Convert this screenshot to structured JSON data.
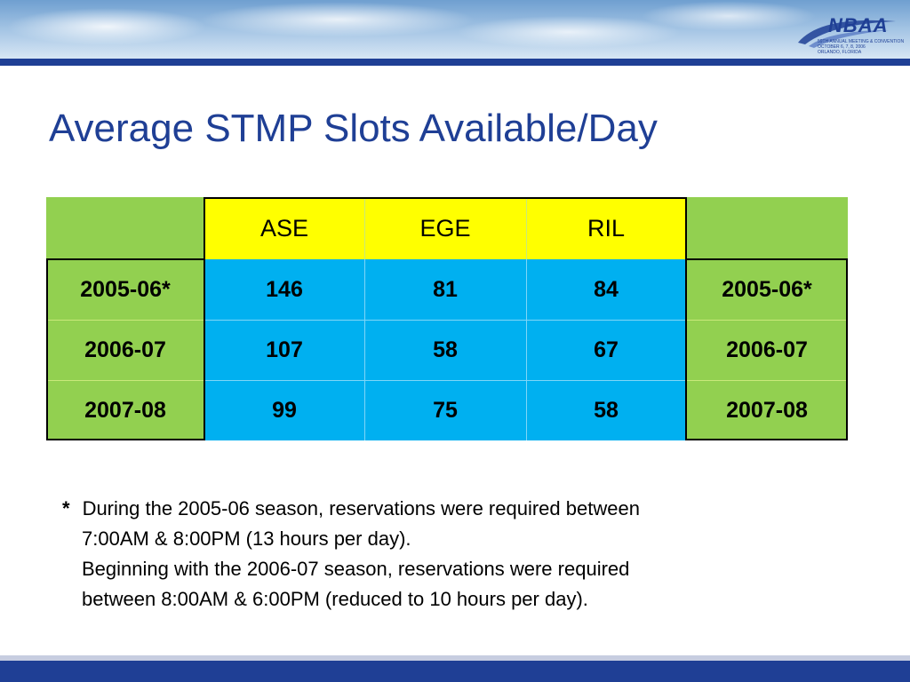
{
  "header": {
    "logo_text": "NBAA",
    "logo_subline_1": "59TH ANNUAL MEETING & CONVENTION",
    "logo_subline_2": "OCTOBER 6, 7, 8, 2006",
    "logo_subline_3": "ORLANDO, FLORIDA"
  },
  "slide": {
    "title": "Average STMP Slots Available/Day"
  },
  "table": {
    "columns": [
      "ASE",
      "EGE",
      "RIL"
    ],
    "rows": [
      {
        "season": "2005-06*",
        "values": [
          "146",
          "81",
          "84"
        ],
        "season_right": "2005-06*"
      },
      {
        "season": "2006-07",
        "values": [
          "107",
          "58",
          "67"
        ],
        "season_right": "2006-07"
      },
      {
        "season": "2007-08",
        "values": [
          "99",
          "75",
          "58"
        ],
        "season_right": "2007-08"
      }
    ]
  },
  "footnote": {
    "marker": "*",
    "line1": "During the 2005-06 season, reservations were required between",
    "line2": "7:00AM & 8:00PM (13 hours per day).",
    "line3": "Beginning with the 2006-07 season, reservations were required",
    "line4": "between 8:00AM & 6:00PM (reduced to 10 hours per day)."
  },
  "colors": {
    "title": "#1f3f95",
    "header_yellow": "#ffff00",
    "season_green": "#92d050",
    "value_blue": "#00b0f0",
    "rule_navy": "#1f3f95"
  }
}
